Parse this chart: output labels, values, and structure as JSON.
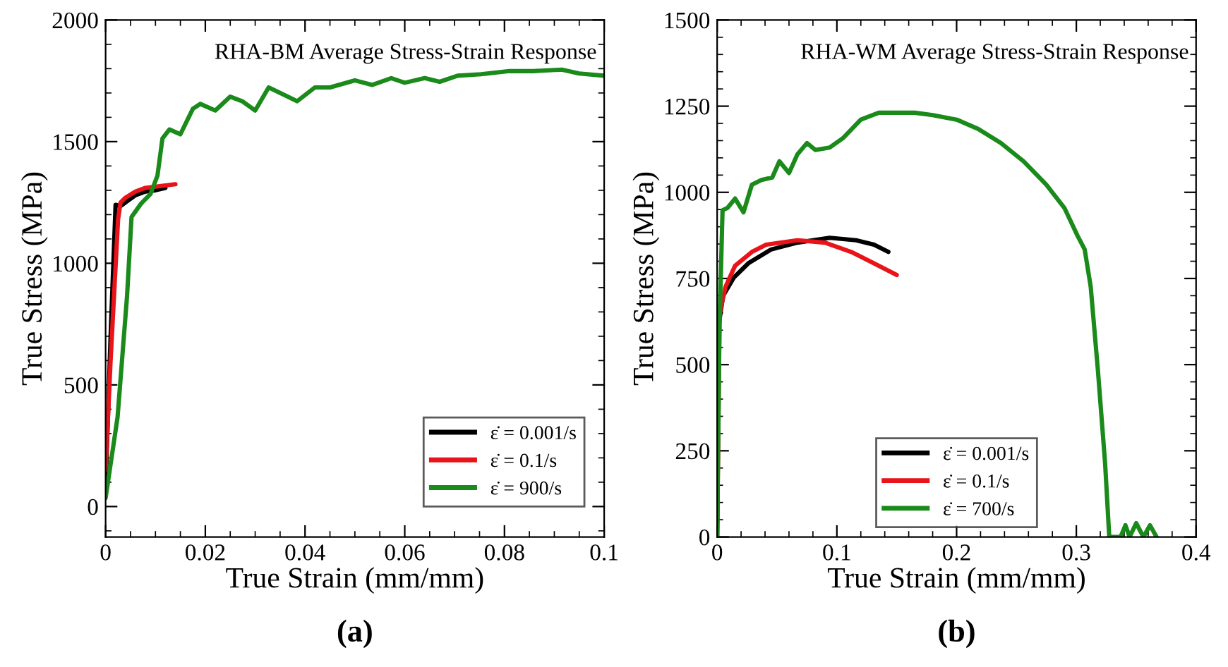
{
  "chart_data": [
    {
      "type": "line",
      "title": "RHA-BM Average Stress-Strain Response",
      "xlabel": "True Strain (mm/mm)",
      "ylabel": "True Stress (MPa)",
      "annotations": [
        "(a)"
      ],
      "xlim": [
        0,
        0.1
      ],
      "ylim": [
        -125,
        2000
      ],
      "xticks": [
        0,
        0.02,
        0.04,
        0.06,
        0.08,
        0.1
      ],
      "yticks": [
        0,
        500,
        1000,
        1500,
        2000
      ],
      "grid": false,
      "legend": "bottom right",
      "marker": "none",
      "line_style": "solid",
      "series": [
        {
          "name": "ε̇ = 0.001/s",
          "color": "#000000",
          "x": [
            0,
            0.001,
            0.002,
            0.003,
            0.004,
            0.006,
            0.008,
            0.01,
            0.012
          ],
          "values": [
            80,
            700,
            1240,
            1235,
            1250,
            1280,
            1295,
            1300,
            1310
          ]
        },
        {
          "name": "ε̇ = 0.1/s",
          "color": "#e8141a",
          "x": [
            0,
            0.001,
            0.0025,
            0.003,
            0.004,
            0.006,
            0.008,
            0.01,
            0.012,
            0.014
          ],
          "values": [
            150,
            600,
            1180,
            1250,
            1270,
            1295,
            1310,
            1315,
            1320,
            1325
          ]
        },
        {
          "name": "ε̇ = 900/s",
          "color": "#1a8a1a",
          "x": [
            0,
            0.0024,
            0.0043,
            0.0052,
            0.0071,
            0.009,
            0.0104,
            0.0114,
            0.0128,
            0.015,
            0.0175,
            0.019,
            0.022,
            0.025,
            0.0275,
            0.03,
            0.0327,
            0.0355,
            0.0384,
            0.042,
            0.045,
            0.05,
            0.0535,
            0.0573,
            0.06,
            0.064,
            0.067,
            0.0706,
            0.0753,
            0.081,
            0.0858,
            0.0915,
            0.095,
            0.1
          ],
          "values": [
            35,
            368,
            865,
            1190,
            1245,
            1285,
            1360,
            1513,
            1550,
            1530,
            1635,
            1655,
            1628,
            1685,
            1665,
            1628,
            1723,
            1695,
            1666,
            1723,
            1723,
            1752,
            1733,
            1761,
            1742,
            1761,
            1746,
            1771,
            1777,
            1790,
            1790,
            1796,
            1780,
            1771
          ]
        }
      ]
    },
    {
      "type": "line",
      "title": "RHA-WM Average Stress-Strain Response",
      "xlabel": "True Strain (mm/mm)",
      "ylabel": "True Stress (MPa)",
      "annotations": [
        "(b)"
      ],
      "xlim": [
        0,
        0.4
      ],
      "ylim": [
        0,
        1500
      ],
      "xticks": [
        0,
        0.1,
        0.2,
        0.3,
        0.4
      ],
      "yticks": [
        0,
        250,
        500,
        750,
        1000,
        1250,
        1500
      ],
      "grid": false,
      "legend": "bottom",
      "marker": "none",
      "line_style": "solid",
      "series": [
        {
          "name": "ε̇ = 0.001/s",
          "color": "#000000",
          "x": [
            0,
            0.0015,
            0.005,
            0.014,
            0.026,
            0.045,
            0.067,
            0.094,
            0.116,
            0.131,
            0.143
          ],
          "values": [
            0,
            619,
            700,
            753,
            794,
            834,
            854,
            868,
            861,
            848,
            827
          ]
        },
        {
          "name": "ε̇ = 0.1/s",
          "color": "#e8141a",
          "x": [
            0,
            0.002,
            0.007,
            0.015,
            0.029,
            0.041,
            0.067,
            0.09,
            0.112,
            0.131,
            0.15
          ],
          "values": [
            0,
            646,
            726,
            787,
            827,
            848,
            861,
            854,
            827,
            794,
            760
          ]
        },
        {
          "name": "ε̇ = 700/s",
          "color": "#1a8a1a",
          "x": [
            0,
            0.002,
            0.0045,
            0.0087,
            0.015,
            0.022,
            0.029,
            0.037,
            0.046,
            0.052,
            0.06,
            0.067,
            0.075,
            0.082,
            0.094,
            0.105,
            0.12,
            0.135,
            0.15,
            0.165,
            0.18,
            0.2,
            0.218,
            0.237,
            0.256,
            0.275,
            0.29,
            0.301,
            0.307,
            0.312,
            0.318,
            0.324,
            0.3275,
            0.337,
            0.341,
            0.3445,
            0.35,
            0.356,
            0.3615,
            0.367
          ],
          "values": [
            0,
            619,
            948,
            955,
            982,
            942,
            1022,
            1036,
            1043,
            1090,
            1056,
            1110,
            1143,
            1123,
            1130,
            1157,
            1211,
            1231,
            1231,
            1231,
            1224,
            1211,
            1184,
            1143,
            1090,
            1022,
            955,
            874,
            834,
            726,
            484,
            215,
            0,
            0,
            34,
            0,
            40,
            0,
            34,
            0
          ]
        }
      ]
    }
  ]
}
